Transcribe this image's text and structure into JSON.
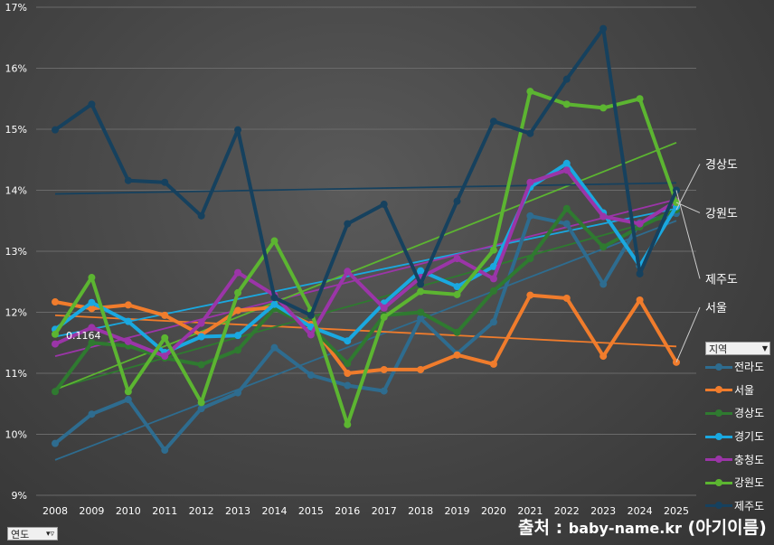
{
  "chart_data": {
    "type": "line",
    "title": "",
    "xlabel": "",
    "ylabel": "",
    "ylim": [
      9,
      17
    ],
    "y_ticks": [
      "9%",
      "10%",
      "11%",
      "12%",
      "13%",
      "14%",
      "15%",
      "16%",
      "17%"
    ],
    "categories": [
      "2008",
      "2009",
      "2010",
      "2011",
      "2012",
      "2013",
      "2014",
      "2015",
      "2016",
      "2017",
      "2018",
      "2019",
      "2020",
      "2021",
      "2022",
      "2023",
      "2024",
      "2025"
    ],
    "series": [
      {
        "name": "전라도",
        "color": "#2e6c8f",
        "values": [
          9.85,
          10.33,
          10.57,
          9.74,
          10.42,
          10.68,
          11.42,
          10.97,
          10.8,
          10.71,
          11.9,
          11.32,
          11.84,
          13.58,
          13.45,
          12.46,
          13.47,
          13.62
        ]
      },
      {
        "name": "서울",
        "color": "#f07c2c",
        "values": [
          12.17,
          12.06,
          12.12,
          11.95,
          11.63,
          12.03,
          12.08,
          11.8,
          11.0,
          11.06,
          11.06,
          11.3,
          11.15,
          12.28,
          12.23,
          11.28,
          12.2,
          11.18
        ]
      },
      {
        "name": "경상도",
        "color": "#2f7a30",
        "values": [
          10.7,
          11.5,
          11.45,
          11.25,
          11.14,
          11.38,
          12.06,
          11.76,
          11.16,
          11.95,
          12.0,
          11.67,
          12.35,
          12.88,
          13.7,
          13.07,
          13.4,
          13.68
        ]
      },
      {
        "name": "경기도",
        "color": "#1aa8e0",
        "values": [
          11.72,
          12.16,
          11.85,
          11.34,
          11.6,
          11.62,
          12.13,
          11.76,
          11.53,
          12.15,
          12.68,
          12.42,
          12.75,
          14.05,
          14.44,
          13.63,
          12.76,
          13.73
        ]
      },
      {
        "name": "충청도",
        "color": "#9b35a8",
        "values": [
          11.48,
          11.75,
          11.52,
          11.28,
          11.82,
          12.65,
          12.28,
          11.63,
          12.67,
          12.07,
          12.57,
          12.88,
          12.55,
          14.13,
          14.33,
          13.57,
          13.45,
          13.82
        ]
      },
      {
        "name": "강원도",
        "color": "#5cb531",
        "values": [
          11.64,
          12.57,
          10.7,
          11.58,
          10.52,
          12.32,
          13.17,
          12.03,
          10.16,
          11.92,
          12.34,
          12.29,
          13.02,
          15.62,
          15.41,
          15.35,
          15.5,
          13.8
        ]
      },
      {
        "name": "제주도",
        "color": "#16415e",
        "values": [
          14.99,
          15.41,
          14.16,
          14.13,
          13.58,
          14.99,
          12.24,
          11.95,
          13.45,
          13.77,
          12.46,
          13.82,
          15.13,
          14.93,
          15.82,
          16.65,
          12.63,
          14.0
        ]
      }
    ],
    "data_label": {
      "series": "강원도",
      "year": "2008",
      "text": "0.1164"
    },
    "trendlines": [
      {
        "series": "전라도",
        "start": 9.58,
        "end": 13.5
      },
      {
        "series": "서울",
        "start": 11.95,
        "end": 11.44
      },
      {
        "series": "경상도",
        "start": 10.75,
        "end": 13.6
      },
      {
        "series": "경기도",
        "start": 11.6,
        "end": 13.7
      },
      {
        "series": "충청도",
        "start": 11.28,
        "end": 13.85
      },
      {
        "series": "강원도",
        "start": 10.73,
        "end": 14.78
      },
      {
        "series": "제주도",
        "start": 13.94,
        "end": 14.12
      }
    ],
    "end_labels": [
      {
        "text": "경상도",
        "value": 14.43,
        "series": "경상도"
      },
      {
        "text": "강원도",
        "value": 13.63,
        "series": "강원도"
      },
      {
        "text": "제주도",
        "value": 12.55,
        "series": "제주도"
      },
      {
        "text": "서울",
        "value": 12.08,
        "series": "서울"
      }
    ]
  },
  "legend": {
    "header": "지역",
    "dropdown_icon": "dropdown-arrow-icon"
  },
  "filter_button": {
    "label": "연도",
    "icon": "filter-icon"
  },
  "source": {
    "prefix": "출처 : ",
    "url": "baby-name.kr",
    "suffix": " (아기이름)"
  }
}
